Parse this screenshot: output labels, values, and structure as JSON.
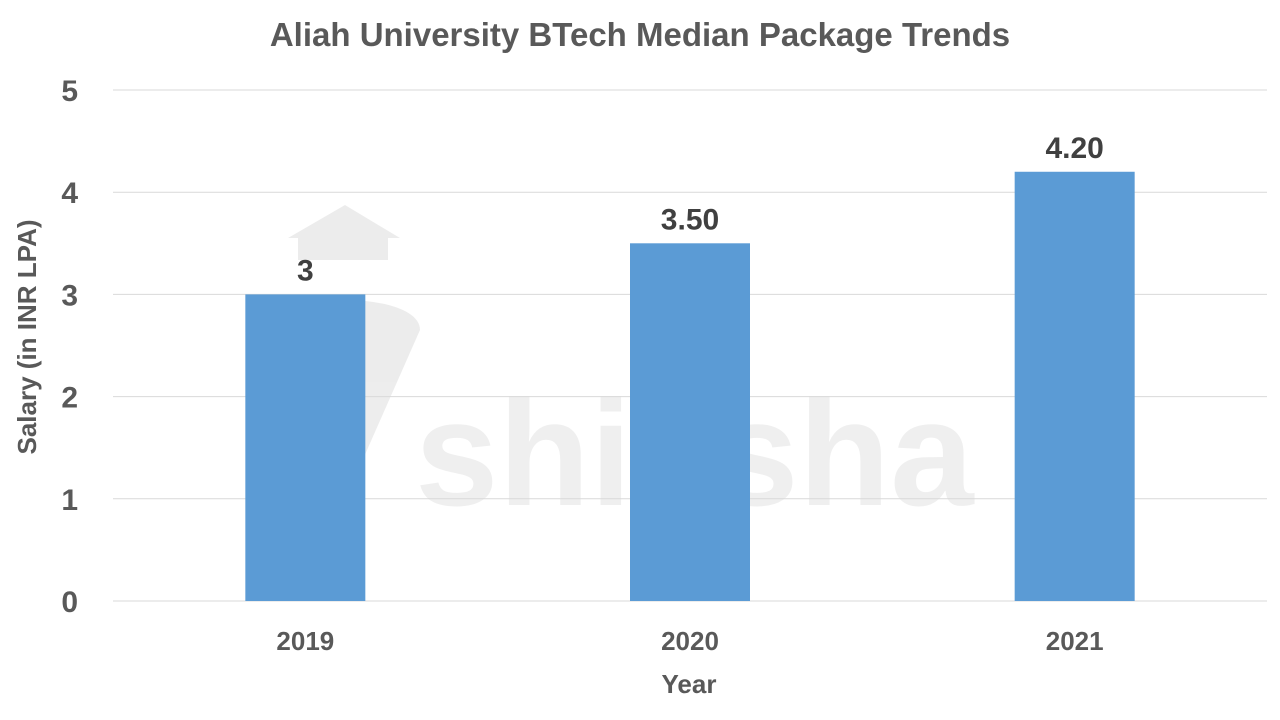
{
  "chart_data": {
    "type": "bar",
    "title": "Aliah University BTech Median Package Trends",
    "xlabel": "Year",
    "ylabel": "Salary (in INR LPA)",
    "categories": [
      "2019",
      "2020",
      "2021"
    ],
    "values": [
      3,
      3.5,
      4.2
    ],
    "data_labels": [
      "3",
      "3.50",
      "4.20"
    ],
    "ylim": [
      0,
      5
    ],
    "yticks": [
      "0",
      "1",
      "2",
      "3",
      "4",
      "5"
    ],
    "grid": true,
    "legend": "none",
    "bar_color": "#5B9BD5",
    "watermark": "shiksha"
  }
}
